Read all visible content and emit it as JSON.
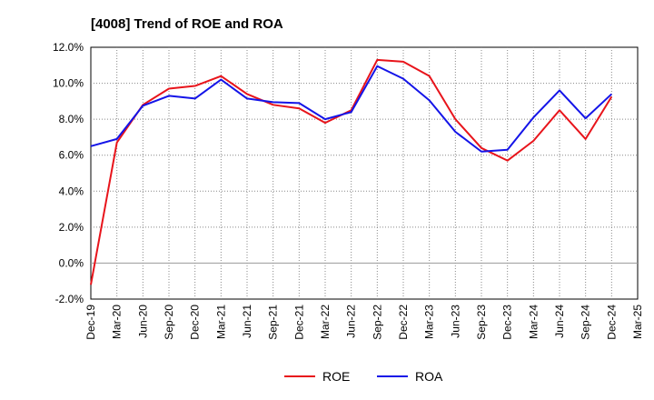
{
  "chart_data": {
    "type": "line",
    "title": "[4008]  Trend of ROE and ROA",
    "xlabel": "",
    "ylabel": "",
    "ylim": [
      -2,
      12
    ],
    "y_ticks": [
      -2,
      0,
      2,
      4,
      6,
      8,
      10,
      12
    ],
    "y_tick_labels": [
      "-2.0%",
      "0.0%",
      "2.0%",
      "4.0%",
      "6.0%",
      "8.0%",
      "10.0%",
      "12.0%"
    ],
    "x_tick_labels": [
      "Dec-19",
      "Mar-20",
      "Jun-20",
      "Sep-20",
      "Dec-20",
      "Mar-21",
      "Jun-21",
      "Sep-21",
      "Dec-21",
      "Mar-22",
      "Jun-22",
      "Sep-22",
      "Dec-22",
      "Mar-23",
      "Jun-23",
      "Sep-23",
      "Dec-23",
      "Mar-24",
      "Jun-24",
      "Sep-24",
      "Dec-24",
      "Mar-25"
    ],
    "categories": [
      "Dec-19",
      "Mar-20",
      "Jun-20",
      "Sep-20",
      "Dec-20",
      "Mar-21",
      "Jun-21",
      "Sep-21",
      "Dec-21",
      "Mar-22",
      "Jun-22",
      "Sep-22",
      "Dec-22",
      "Mar-23",
      "Jun-23",
      "Sep-23",
      "Dec-23",
      "Mar-24",
      "Jun-24",
      "Sep-24",
      "Dec-24"
    ],
    "grid": true,
    "legend_position": "bottom-center",
    "series": [
      {
        "name": "ROE",
        "color": "#e8141b",
        "values": [
          -1.2,
          6.7,
          8.8,
          9.7,
          9.85,
          10.4,
          9.4,
          8.8,
          8.6,
          7.8,
          8.5,
          11.3,
          11.2,
          10.4,
          8.0,
          6.4,
          5.7,
          6.8,
          8.5,
          6.9,
          9.25
        ]
      },
      {
        "name": "ROA",
        "color": "#1414e8",
        "values": [
          6.5,
          6.9,
          8.75,
          9.3,
          9.15,
          10.2,
          9.15,
          8.95,
          8.9,
          8.0,
          8.4,
          10.95,
          10.25,
          9.05,
          7.3,
          6.2,
          6.3,
          8.1,
          9.6,
          8.05,
          9.4
        ]
      }
    ]
  }
}
